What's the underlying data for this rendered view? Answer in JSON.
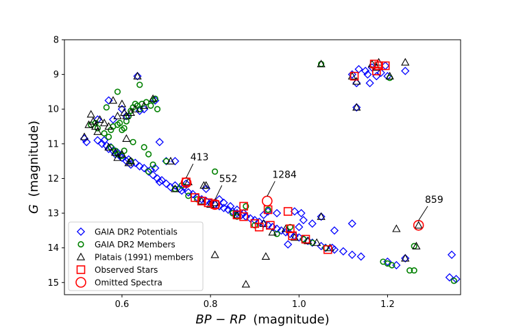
{
  "chart_data": {
    "type": "scatter",
    "xlabel": "BP − RP (magnitude)",
    "xlabel_math": "BP − RP",
    "xlabel_unit": "(magnitude)",
    "ylabel": "G (magnitude)",
    "ylabel_math": "G",
    "ylabel_unit": "(magnitude)",
    "xlim": [
      0.47,
      1.365
    ],
    "ylim": [
      15.35,
      8.0
    ],
    "xticks": [
      0.6,
      0.8,
      1.0,
      1.2
    ],
    "xtick_labels": [
      "0.6",
      "0.8",
      "1.0",
      "1.2"
    ],
    "yticks": [
      8,
      9,
      10,
      11,
      12,
      13,
      14,
      15
    ],
    "ytick_labels": [
      "8",
      "9",
      "10",
      "11",
      "12",
      "13",
      "14",
      "15"
    ],
    "legend_position": "lower-left",
    "colors": {
      "potentials": "#0000ff",
      "members": "#008000",
      "platais": "#000000",
      "observed": "#ff0000",
      "omitted": "#ff0000"
    },
    "series": [
      {
        "name": "GAIA DR2 Potentials",
        "marker": "diamond",
        "points": [
          [
            0.515,
            10.85
          ],
          [
            0.52,
            10.95
          ],
          [
            0.545,
            10.9
          ],
          [
            0.555,
            11.0
          ],
          [
            0.56,
            10.9
          ],
          [
            0.565,
            11.05
          ],
          [
            0.57,
            11.15
          ],
          [
            0.575,
            11.1
          ],
          [
            0.58,
            11.2
          ],
          [
            0.585,
            11.3
          ],
          [
            0.59,
            11.25
          ],
          [
            0.595,
            11.35
          ],
          [
            0.6,
            11.4
          ],
          [
            0.61,
            11.5
          ],
          [
            0.615,
            11.45
          ],
          [
            0.62,
            11.6
          ],
          [
            0.63,
            11.55
          ],
          [
            0.64,
            11.65
          ],
          [
            0.65,
            11.7
          ],
          [
            0.66,
            11.8
          ],
          [
            0.665,
            11.75
          ],
          [
            0.67,
            11.9
          ],
          [
            0.675,
            11.7
          ],
          [
            0.68,
            12.0
          ],
          [
            0.685,
            12.1
          ],
          [
            0.69,
            12.05
          ],
          [
            0.7,
            12.15
          ],
          [
            0.71,
            12.25
          ],
          [
            0.72,
            12.2
          ],
          [
            0.73,
            12.3
          ],
          [
            0.735,
            12.35
          ],
          [
            0.74,
            12.25
          ],
          [
            0.75,
            12.4
          ],
          [
            0.76,
            12.45
          ],
          [
            0.77,
            12.55
          ],
          [
            0.78,
            12.6
          ],
          [
            0.79,
            12.65
          ],
          [
            0.8,
            12.7
          ],
          [
            0.81,
            12.75
          ],
          [
            0.82,
            12.8
          ],
          [
            0.83,
            12.85
          ],
          [
            0.84,
            12.9
          ],
          [
            0.85,
            12.95
          ],
          [
            0.86,
            13.0
          ],
          [
            0.87,
            13.05
          ],
          [
            0.88,
            13.1
          ],
          [
            0.89,
            13.15
          ],
          [
            0.9,
            13.2
          ],
          [
            0.91,
            13.25
          ],
          [
            0.92,
            13.3
          ],
          [
            0.93,
            13.35
          ],
          [
            0.94,
            13.4
          ],
          [
            0.95,
            13.45
          ],
          [
            0.96,
            13.5
          ],
          [
            0.97,
            13.55
          ],
          [
            0.98,
            13.6
          ],
          [
            0.99,
            13.65
          ],
          [
            1.0,
            13.7
          ],
          [
            1.01,
            13.75
          ],
          [
            1.02,
            13.8
          ],
          [
            1.03,
            13.85
          ],
          [
            1.05,
            13.95
          ],
          [
            1.06,
            14.0
          ],
          [
            1.08,
            14.05
          ],
          [
            1.1,
            14.1
          ],
          [
            1.12,
            14.2
          ],
          [
            1.14,
            14.25
          ],
          [
            1.2,
            14.4
          ],
          [
            1.22,
            14.5
          ],
          [
            1.34,
            14.85
          ],
          [
            1.355,
            14.9
          ],
          [
            0.635,
            9.05
          ],
          [
            0.6,
            10.0
          ],
          [
            0.57,
            9.75
          ],
          [
            0.545,
            10.3
          ],
          [
            0.58,
            10.3
          ],
          [
            0.61,
            10.2
          ],
          [
            0.64,
            10.05
          ],
          [
            0.65,
            10.0
          ],
          [
            0.675,
            9.75
          ],
          [
            0.685,
            10.95
          ],
          [
            0.72,
            11.5
          ],
          [
            0.7,
            11.5
          ],
          [
            0.745,
            12.15
          ],
          [
            0.79,
            12.3
          ],
          [
            0.82,
            12.6
          ],
          [
            0.83,
            12.7
          ],
          [
            0.845,
            12.8
          ],
          [
            0.86,
            12.9
          ],
          [
            0.875,
            13.0
          ],
          [
            0.88,
            13.1
          ],
          [
            0.92,
            13.05
          ],
          [
            0.93,
            12.95
          ],
          [
            0.95,
            13.0
          ],
          [
            0.99,
            12.95
          ],
          [
            1.005,
            13.0
          ],
          [
            1.01,
            13.2
          ],
          [
            1.03,
            13.3
          ],
          [
            1.05,
            13.1
          ],
          [
            1.075,
            14.0
          ],
          [
            1.12,
            13.3
          ],
          [
            1.08,
            13.5
          ],
          [
            1.0,
            13.4
          ],
          [
            0.975,
            13.9
          ],
          [
            1.12,
            9.0
          ],
          [
            1.135,
            8.85
          ],
          [
            1.15,
            8.9
          ],
          [
            1.155,
            9.0
          ],
          [
            1.165,
            8.8
          ],
          [
            1.175,
            9.05
          ],
          [
            1.185,
            8.95
          ],
          [
            1.195,
            8.75
          ],
          [
            1.2,
            9.05
          ],
          [
            1.24,
            8.9
          ],
          [
            1.13,
            9.25
          ],
          [
            1.16,
            9.25
          ],
          [
            1.13,
            9.95
          ],
          [
            1.345,
            14.2
          ],
          [
            1.24,
            14.3
          ]
        ]
      },
      {
        "name": "GAIA DR2 Members",
        "marker": "circle",
        "points": [
          [
            0.53,
            10.45
          ],
          [
            0.54,
            10.4
          ],
          [
            0.545,
            10.55
          ],
          [
            0.56,
            10.7
          ],
          [
            0.57,
            10.8
          ],
          [
            0.575,
            10.6
          ],
          [
            0.58,
            10.5
          ],
          [
            0.59,
            10.45
          ],
          [
            0.595,
            10.4
          ],
          [
            0.6,
            10.6
          ],
          [
            0.605,
            10.55
          ],
          [
            0.61,
            10.35
          ],
          [
            0.615,
            10.2
          ],
          [
            0.62,
            10.05
          ],
          [
            0.625,
            9.95
          ],
          [
            0.63,
            9.85
          ],
          [
            0.635,
            9.9
          ],
          [
            0.64,
            10.0
          ],
          [
            0.645,
            9.85
          ],
          [
            0.655,
            9.8
          ],
          [
            0.665,
            9.9
          ],
          [
            0.67,
            9.75
          ],
          [
            0.675,
            9.7
          ],
          [
            0.68,
            10.0
          ],
          [
            0.59,
            9.5
          ],
          [
            0.565,
            9.95
          ],
          [
            0.64,
            9.3
          ],
          [
            0.625,
            10.95
          ],
          [
            0.65,
            11.1
          ],
          [
            0.66,
            11.3
          ],
          [
            0.67,
            11.6
          ],
          [
            0.66,
            11.8
          ],
          [
            0.575,
            11.1
          ],
          [
            0.585,
            11.2
          ],
          [
            0.59,
            11.3
          ],
          [
            0.6,
            11.35
          ],
          [
            0.605,
            11.2
          ],
          [
            0.62,
            11.5
          ],
          [
            0.7,
            11.5
          ],
          [
            0.72,
            12.3
          ],
          [
            0.735,
            12.2
          ],
          [
            0.75,
            12.5
          ],
          [
            0.77,
            12.6
          ],
          [
            0.81,
            11.8
          ],
          [
            0.85,
            13.0
          ],
          [
            0.86,
            13.1
          ],
          [
            0.88,
            12.8
          ],
          [
            0.9,
            13.35
          ],
          [
            0.93,
            12.9
          ],
          [
            0.95,
            13.6
          ],
          [
            0.98,
            13.4
          ],
          [
            1.01,
            13.75
          ],
          [
            1.03,
            13.85
          ],
          [
            1.06,
            14.0
          ],
          [
            1.05,
            8.7
          ],
          [
            1.205,
            9.1
          ],
          [
            1.19,
            14.4
          ],
          [
            1.2,
            14.45
          ],
          [
            1.21,
            14.5
          ],
          [
            1.25,
            14.65
          ],
          [
            1.26,
            14.65
          ],
          [
            1.35,
            14.95
          ],
          [
            1.26,
            13.95
          ]
        ]
      },
      {
        "name": "Platais (1991) members",
        "marker": "triangle",
        "points": [
          [
            0.515,
            10.8
          ],
          [
            0.525,
            10.45
          ],
          [
            0.53,
            10.15
          ],
          [
            0.535,
            10.35
          ],
          [
            0.54,
            10.5
          ],
          [
            0.545,
            10.65
          ],
          [
            0.55,
            10.3
          ],
          [
            0.56,
            10.4
          ],
          [
            0.57,
            10.5
          ],
          [
            0.58,
            9.75
          ],
          [
            0.59,
            10.2
          ],
          [
            0.6,
            9.85
          ],
          [
            0.605,
            10.1
          ],
          [
            0.61,
            10.2
          ],
          [
            0.62,
            10.1
          ],
          [
            0.63,
            10.0
          ],
          [
            0.635,
            9.05
          ],
          [
            0.65,
            9.9
          ],
          [
            0.67,
            9.7
          ],
          [
            0.61,
            10.85
          ],
          [
            0.57,
            11.1
          ],
          [
            0.585,
            11.25
          ],
          [
            0.59,
            11.4
          ],
          [
            0.6,
            11.3
          ],
          [
            0.615,
            11.55
          ],
          [
            0.62,
            11.5
          ],
          [
            0.71,
            11.5
          ],
          [
            0.72,
            12.3
          ],
          [
            0.75,
            12.1
          ],
          [
            0.78,
            12.65
          ],
          [
            0.785,
            12.2
          ],
          [
            0.81,
            12.7
          ],
          [
            0.81,
            14.2
          ],
          [
            0.86,
            13.05
          ],
          [
            0.88,
            15.05
          ],
          [
            0.92,
            13.3
          ],
          [
            0.925,
            14.25
          ],
          [
            0.94,
            13.55
          ],
          [
            0.97,
            13.45
          ],
          [
            0.99,
            13.7
          ],
          [
            1.02,
            13.8
          ],
          [
            1.04,
            13.85
          ],
          [
            1.05,
            13.1
          ],
          [
            1.07,
            14.0
          ],
          [
            1.05,
            8.7
          ],
          [
            1.12,
            9.05
          ],
          [
            1.13,
            9.2
          ],
          [
            1.13,
            9.95
          ],
          [
            1.165,
            8.7
          ],
          [
            1.175,
            8.8
          ],
          [
            1.18,
            8.65
          ],
          [
            1.205,
            9.05
          ],
          [
            1.24,
            8.65
          ],
          [
            1.24,
            14.3
          ],
          [
            1.22,
            13.45
          ],
          [
            1.265,
            13.95
          ],
          [
            1.27,
            13.35
          ],
          [
            0.79,
            12.2
          ],
          [
            0.8,
            12.75
          ]
        ]
      },
      {
        "name": "Observed Stars",
        "marker": "square",
        "points": [
          [
            0.745,
            12.1
          ],
          [
            0.765,
            12.55
          ],
          [
            0.78,
            12.65
          ],
          [
            0.795,
            12.7
          ],
          [
            0.81,
            12.75
          ],
          [
            0.86,
            13.05
          ],
          [
            0.875,
            13.1
          ],
          [
            0.875,
            12.8
          ],
          [
            0.9,
            13.3
          ],
          [
            0.91,
            13.4
          ],
          [
            0.93,
            12.9
          ],
          [
            0.935,
            13.35
          ],
          [
            0.975,
            12.95
          ],
          [
            0.98,
            13.45
          ],
          [
            0.985,
            13.65
          ],
          [
            1.015,
            13.75
          ],
          [
            1.065,
            14.05
          ],
          [
            1.125,
            9.05
          ],
          [
            1.17,
            8.7
          ],
          [
            1.175,
            8.9
          ],
          [
            1.18,
            8.75
          ],
          [
            1.195,
            8.75
          ]
        ]
      },
      {
        "name": "Omitted Spectra",
        "marker": "circle-large",
        "points": [
          [
            0.745,
            12.12
          ],
          [
            0.81,
            12.75
          ],
          [
            0.928,
            12.65
          ],
          [
            1.27,
            13.35
          ]
        ]
      }
    ],
    "annotations": [
      {
        "text": "413",
        "point": [
          0.745,
          12.12
        ],
        "text_pos": [
          0.77,
          11.48
        ]
      },
      {
        "text": "552",
        "point": [
          0.81,
          12.75
        ],
        "text_pos": [
          0.835,
          12.1
        ]
      },
      {
        "text": "1284",
        "point": [
          0.928,
          12.65
        ],
        "text_pos": [
          0.955,
          11.98
        ]
      },
      {
        "text": "859",
        "point": [
          1.27,
          13.35
        ],
        "text_pos": [
          1.3,
          12.7
        ]
      }
    ]
  }
}
